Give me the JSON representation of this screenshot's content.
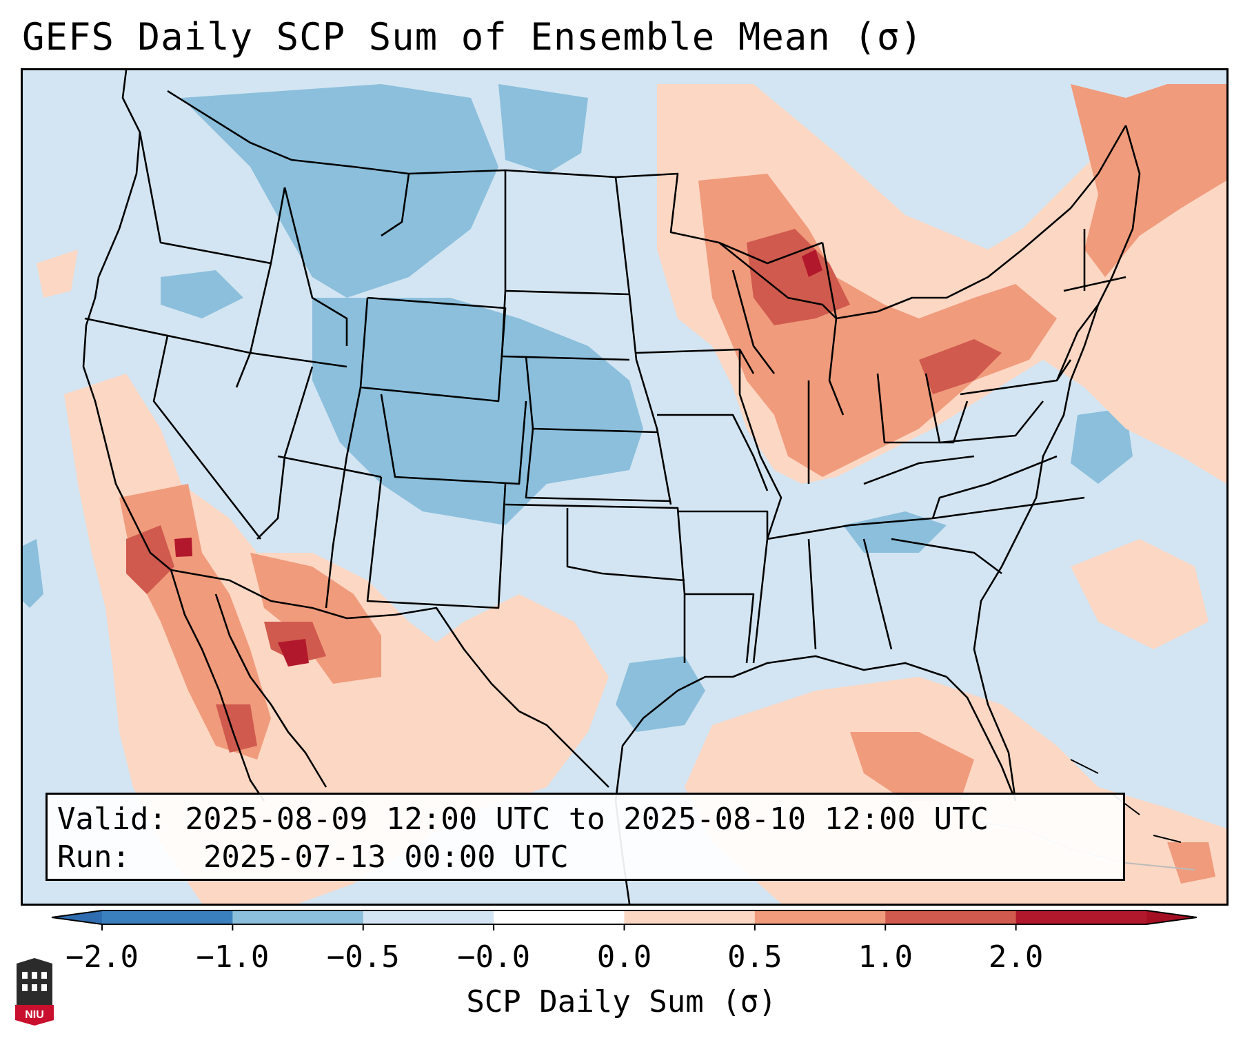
{
  "title": "GEFS Daily SCP Sum of Ensemble Mean (σ)",
  "info": {
    "valid_label": "Valid:",
    "valid_text": "2025-08-09 12:00 UTC to 2025-08-10 12:00 UTC",
    "run_label": "Run:",
    "run_text": "2025-07-13 00:00 UTC"
  },
  "colorbar": {
    "label": "SCP Daily Sum (σ)",
    "ticks": [
      "−2.0",
      "−1.0",
      "−0.5",
      "−0.0",
      "0.0",
      "0.5",
      "1.0",
      "2.0"
    ],
    "colors": [
      "#3a7fbe",
      "#8bbfdc",
      "#d3e5f2",
      "#ffffff",
      "#fcd7c3",
      "#f09b7c",
      "#d05a4e",
      "#b2182b"
    ],
    "under_color": "#2f6db0",
    "over_color": "#a50f24"
  },
  "map": {
    "background_color": "#d3e5f2",
    "region_colors": {
      "neg_strong": "#8bbfdc",
      "pos_light": "#fcd7c3",
      "pos_mid": "#f09b7c",
      "pos_strong": "#d05a4e",
      "pos_max": "#b2182b"
    }
  },
  "logo": {
    "text": "NIU",
    "color": "#c8102e"
  }
}
